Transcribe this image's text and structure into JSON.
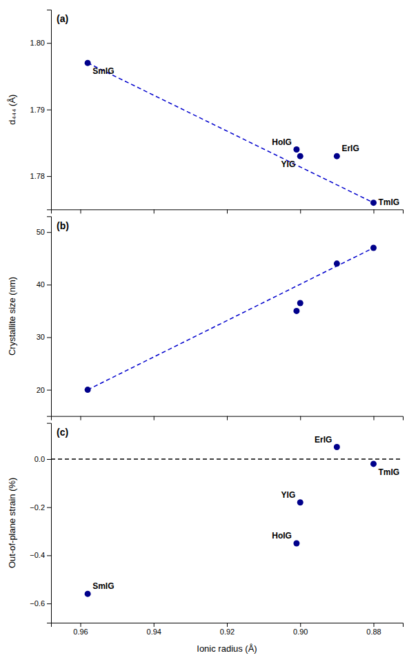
{
  "chart_data": [
    {
      "type": "scatter",
      "ylabel": "d₄₄₄ (Å)",
      "xlim": [
        0.968,
        0.872
      ],
      "xticks": [
        0.88,
        0.9,
        0.92,
        0.94,
        0.96
      ],
      "ylim": [
        1.775,
        1.805
      ],
      "yticks": [
        1.78,
        1.79,
        {
          "value": 1.8,
          "label": "1.80"
        }
      ],
      "tick_labels": "y",
      "series": [
        {
          "type": "scatter",
          "color": "#00008B",
          "marker": "circle",
          "x": [
            0.958,
            0.901,
            0.9,
            0.89,
            0.88
          ],
          "values": [
            1.797,
            1.784,
            1.783,
            1.783,
            1.776
          ],
          "labels": [
            "SmIG",
            "HoIG",
            "YIG",
            "ErIG",
            "TmIG"
          ]
        },
        {
          "type": "line",
          "color": "#0000CD",
          "line_style": "dashed",
          "x": [
            0.958,
            0.88
          ],
          "values": [
            1.797,
            1.776
          ]
        }
      ],
      "annotations": [
        {
          "text": "(a)"
        }
      ]
    },
    {
      "type": "scatter",
      "ylabel": "Crystallite size (nm)",
      "xlim": [
        0.968,
        0.872
      ],
      "xticks": [
        0.88,
        0.9,
        0.92,
        0.94,
        0.96
      ],
      "ylim": [
        15,
        53
      ],
      "yticks": [
        20,
        30,
        40,
        50
      ],
      "tick_labels": "y",
      "series": [
        {
          "type": "scatter",
          "color": "#00008B",
          "marker": "circle",
          "x": [
            0.958,
            0.901,
            0.9,
            0.89,
            0.88
          ],
          "values": [
            20.0,
            35.0,
            36.5,
            44.0,
            47.0
          ]
        },
        {
          "type": "line",
          "color": "#0000CD",
          "line_style": "dashed",
          "x": [
            0.958,
            0.88
          ],
          "values": [
            20.0,
            47.0
          ]
        }
      ],
      "annotations": [
        {
          "text": "(b)"
        }
      ]
    },
    {
      "type": "scatter",
      "xlabel": "Ionic radius (Å)",
      "ylabel": "Out-of-plane strain (%)",
      "xlim": [
        0.968,
        0.872
      ],
      "xticks": [
        0.88,
        {
          "value": 0.9,
          "label": "0.90"
        },
        0.92,
        0.94,
        0.96
      ],
      "ylim": [
        -0.68,
        0.15
      ],
      "yticks": [
        {
          "value": -0.6,
          "label": "−0.6"
        },
        {
          "value": -0.4,
          "label": "−0.4"
        },
        {
          "value": -0.2,
          "label": "−0.2"
        },
        {
          "value": 0.0,
          "label": "0.0"
        }
      ],
      "hlines": [
        {
          "y": 0,
          "color": "#000000",
          "line_style": "dashed"
        }
      ],
      "series": [
        {
          "type": "scatter",
          "color": "#00008B",
          "marker": "circle",
          "x": [
            0.958,
            0.901,
            0.9,
            0.89,
            0.88
          ],
          "values": [
            -0.56,
            -0.35,
            -0.18,
            0.05,
            -0.02
          ],
          "labels": [
            "SmIG",
            "HoIG",
            "YIG",
            "ErIG",
            "TmIG"
          ]
        }
      ],
      "annotations": [
        {
          "text": "(c)"
        }
      ]
    }
  ]
}
